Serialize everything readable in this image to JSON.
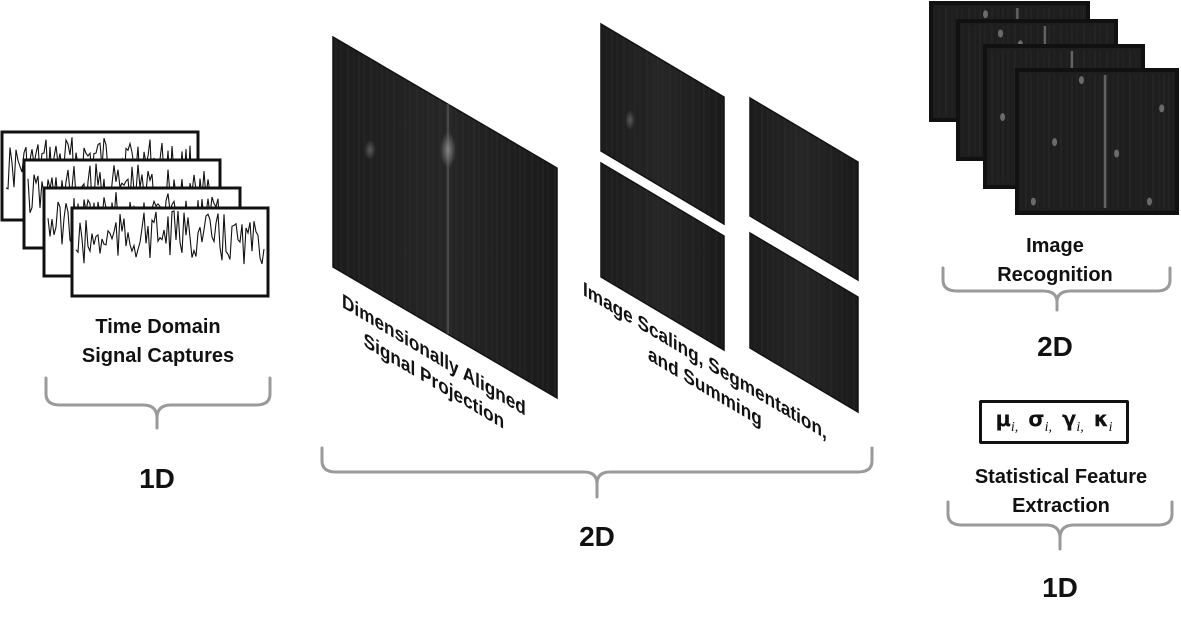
{
  "stages": {
    "time_domain": {
      "label_line1": "Time Domain",
      "label_line2": "Signal Captures",
      "dimension": "1D"
    },
    "projection": {
      "label_line1": "Dimensionally Aligned",
      "label_line2": "Signal Projection"
    },
    "scaling": {
      "label_line1": "Image Scaling, Segmentation,",
      "label_line2": "and Summing"
    },
    "middle_dimension": "2D",
    "image_recognition": {
      "label_line1": "Image",
      "label_line2": "Recognition",
      "dimension": "2D"
    },
    "statistical": {
      "symbols": [
        {
          "sym": "μ",
          "sub": "i,"
        },
        {
          "sym": "σ",
          "sub": "i,"
        },
        {
          "sym": "γ",
          "sub": "i,"
        },
        {
          "sym": "κ",
          "sub": "i"
        }
      ],
      "label_line1": "Statistical Feature",
      "label_line2": "Extraction",
      "dimension": "1D"
    }
  }
}
